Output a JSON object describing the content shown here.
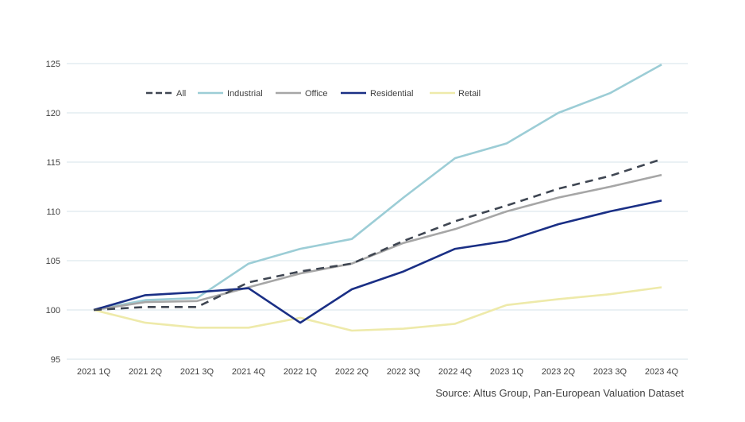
{
  "chart_data": {
    "type": "line",
    "title": "",
    "xlabel": "",
    "ylabel": "",
    "ylim": [
      95,
      125
    ],
    "yticks": [
      95,
      100,
      105,
      110,
      115,
      120,
      125
    ],
    "grid": true,
    "legend_position": "top-left",
    "categories": [
      "2021 1Q",
      "2021 2Q",
      "2021 3Q",
      "2021 4Q",
      "2022 1Q",
      "2022 2Q",
      "2022 3Q",
      "2022 4Q",
      "2023 1Q",
      "2023 2Q",
      "2023 3Q",
      "2023 4Q"
    ],
    "series": [
      {
        "name": "All",
        "color": "#3f4652",
        "dashed": true,
        "values": [
          100,
          100.3,
          100.3,
          102.8,
          103.9,
          104.7,
          107.0,
          109.0,
          110.6,
          112.3,
          113.6,
          115.3
        ]
      },
      {
        "name": "Industrial",
        "color": "#9ccdd6",
        "dashed": false,
        "values": [
          100,
          101.0,
          101.2,
          104.7,
          106.2,
          107.2,
          111.4,
          115.4,
          116.9,
          120.0,
          122.0,
          124.9
        ]
      },
      {
        "name": "Office",
        "color": "#a6a6a6",
        "dashed": false,
        "values": [
          100,
          100.8,
          100.9,
          102.3,
          103.7,
          104.7,
          106.8,
          108.2,
          110.0,
          111.4,
          112.5,
          113.7
        ]
      },
      {
        "name": "Residential",
        "color": "#1a2f85",
        "dashed": false,
        "values": [
          100,
          101.5,
          101.8,
          102.2,
          98.7,
          102.1,
          103.9,
          106.2,
          107.0,
          108.7,
          110.0,
          111.1
        ]
      },
      {
        "name": "Retail",
        "color": "#eeeaaa",
        "dashed": false,
        "values": [
          100,
          98.7,
          98.2,
          98.2,
          99.2,
          97.9,
          98.1,
          98.6,
          100.5,
          101.1,
          101.6,
          102.3
        ]
      }
    ],
    "source": "Source: Altus Group, Pan-European Valuation  Dataset"
  },
  "colors": {
    "grid": "#d5e3ea",
    "axis_text": "#404040"
  }
}
